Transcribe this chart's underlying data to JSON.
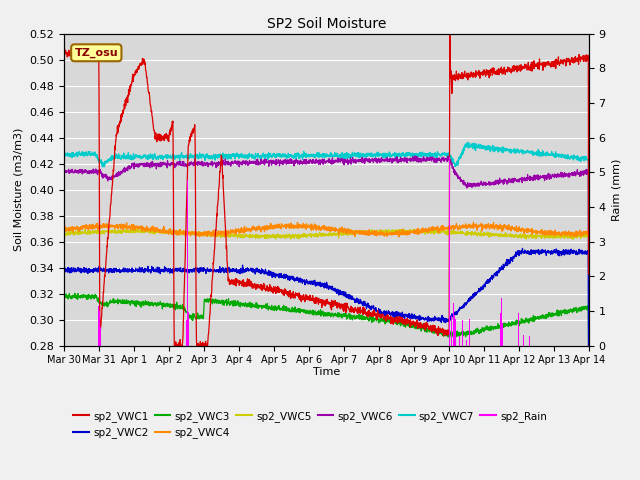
{
  "title": "SP2 Soil Moisture",
  "xlabel": "Time",
  "ylabel_left": "Soil Moisture (m3/m3)",
  "ylabel_right": "Raim (mm)",
  "ylim_left": [
    0.28,
    0.52
  ],
  "ylim_right": [
    0.0,
    9.0
  ],
  "yticks_left": [
    0.28,
    0.3,
    0.32,
    0.34,
    0.36,
    0.38,
    0.4,
    0.42,
    0.44,
    0.46,
    0.48,
    0.5,
    0.52
  ],
  "yticks_right": [
    0.0,
    1.0,
    2.0,
    3.0,
    4.0,
    5.0,
    6.0,
    7.0,
    8.0,
    9.0
  ],
  "plot_bg_color": "#d8d8d8",
  "fig_bg_color": "#f0f0f0",
  "annotation_text": "TZ_osu",
  "annotation_bg": "#ffff99",
  "annotation_border": "#996600",
  "series_colors": {
    "sp2_VWC1": "#dd0000",
    "sp2_VWC2": "#0000cc",
    "sp2_VWC3": "#00aa00",
    "sp2_VWC4": "#ff8800",
    "sp2_VWC5": "#cccc00",
    "sp2_VWC6": "#9900aa",
    "sp2_VWC7": "#00cccc",
    "sp2_Rain": "#ff00ff"
  }
}
